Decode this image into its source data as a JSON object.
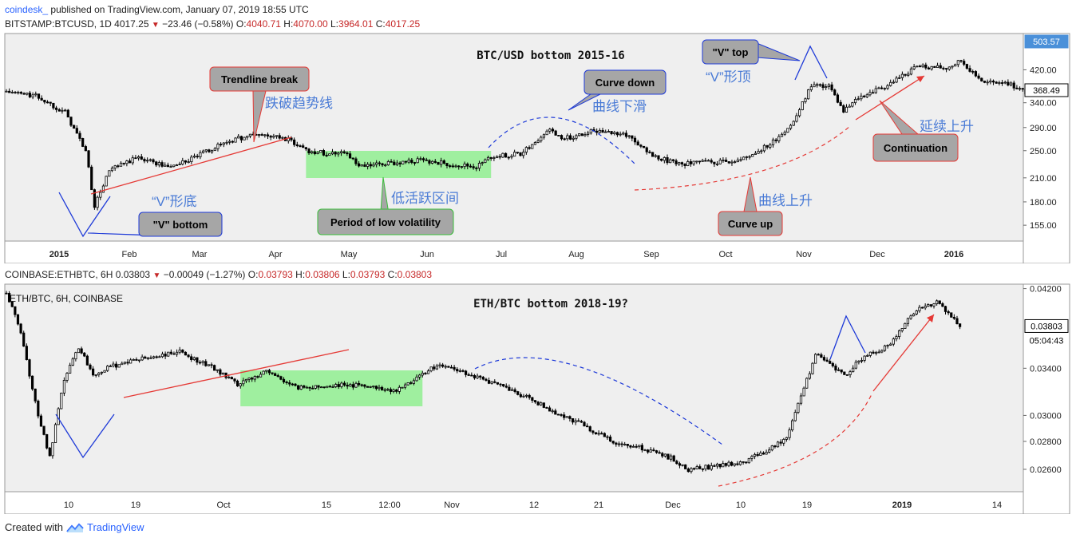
{
  "header": {
    "publisher": "coindesk_",
    "published_text": "published on TradingView.com, January 07, 2019 18:55 UTC"
  },
  "panel1": {
    "symbol": "BITSTAMP:BTCUSD, 1D",
    "last": "4017.25",
    "change": "−23.46 (−0.58%)",
    "open": "4040.71",
    "high": "4070.00",
    "low": "3964.01",
    "close": "4017.25"
  },
  "panel2": {
    "symbol": "COINBASE:ETHBTC, 6H",
    "last": "0.03803",
    "change": "−0.00049 (−1.27%)",
    "open": "0.03793",
    "high": "0.03806",
    "low": "0.03793",
    "close": "0.03803",
    "legend": "ETH/BTC, 6H, COINBASE",
    "countdown": "05:04:43"
  },
  "footer": {
    "created_with": "Created with",
    "brand": "TradingView"
  },
  "colors": {
    "up": "#ffffff",
    "down": "#000000",
    "wick": "#000000",
    "accent_red": "#e53935",
    "accent_blue": "#1e3ad8",
    "green_zone": "#90ee90",
    "callout_grey": "#a6a6a6",
    "price_tag_blue": "#4a90d9"
  },
  "chart_data": [
    {
      "type": "candlestick",
      "title": "BTC/USD bottom 2015-16",
      "x_ticks": [
        "2015",
        "Feb",
        "Mar",
        "Apr",
        "May",
        "Jun",
        "Jul",
        "Aug",
        "Sep",
        "Oct",
        "Nov",
        "Dec",
        "2016"
      ],
      "y_ticks": [
        155.0,
        180.0,
        210.0,
        250.0,
        290.0,
        340.0,
        420.0
      ],
      "y_scale": "log",
      "ylim": [
        140,
        530
      ],
      "price_tags": [
        "503.57",
        "368.49"
      ],
      "series_path": [
        [
          0,
          365
        ],
        [
          10,
          355
        ],
        [
          20,
          320
        ],
        [
          27,
          250
        ],
        [
          30,
          175
        ],
        [
          35,
          220
        ],
        [
          45,
          240
        ],
        [
          55,
          225
        ],
        [
          62,
          235
        ],
        [
          75,
          265
        ],
        [
          85,
          278
        ],
        [
          95,
          270
        ],
        [
          103,
          250
        ],
        [
          110,
          245
        ],
        [
          115,
          250
        ],
        [
          120,
          225
        ],
        [
          130,
          230
        ],
        [
          140,
          235
        ],
        [
          150,
          230
        ],
        [
          160,
          225
        ],
        [
          165,
          240
        ],
        [
          175,
          245
        ],
        [
          180,
          265
        ],
        [
          185,
          285
        ],
        [
          190,
          270
        ],
        [
          200,
          285
        ],
        [
          210,
          280
        ],
        [
          215,
          262
        ],
        [
          220,
          240
        ],
        [
          230,
          230
        ],
        [
          240,
          232
        ],
        [
          250,
          235
        ],
        [
          260,
          260
        ],
        [
          268,
          300
        ],
        [
          274,
          380
        ],
        [
          280,
          380
        ],
        [
          285,
          320
        ],
        [
          290,
          350
        ],
        [
          300,
          380
        ],
        [
          310,
          430
        ],
        [
          320,
          425
        ],
        [
          325,
          445
        ],
        [
          333,
          385
        ],
        [
          340,
          390
        ],
        [
          348,
          360
        ]
      ],
      "zones": [
        {
          "label": "Period of low volatility",
          "from": 102,
          "to": 165
        }
      ],
      "annotations": [
        {
          "text": "Trendline break"
        },
        {
          "text": "跌破趋势线"
        },
        {
          "text": "\"V\" bottom"
        },
        {
          "text": "“V”形底"
        },
        {
          "text": "低活跃区间"
        },
        {
          "text": "Curve down"
        },
        {
          "text": "曲线下滑"
        },
        {
          "text": "Curve up"
        },
        {
          "text": "曲线上升"
        },
        {
          "text": "\"V\" top"
        },
        {
          "text": "“V”形顶"
        },
        {
          "text": "Continuation"
        },
        {
          "text": "延续上升"
        }
      ]
    },
    {
      "type": "candlestick",
      "title": "ETH/BTC bottom 2018-19?",
      "x_ticks": [
        "10",
        "19",
        "Oct",
        "15",
        "12:00",
        "Nov",
        "12",
        "21",
        "Dec",
        "10",
        "19",
        "2019",
        "14"
      ],
      "y_ticks": [
        0.026,
        0.028,
        0.03,
        0.034,
        0.042
      ],
      "y_scale": "log",
      "ylim": [
        0.0245,
        0.0425
      ],
      "price_tags": [
        "0.03803"
      ],
      "series_path": [
        [
          0,
          0.0415
        ],
        [
          5,
          0.0375
        ],
        [
          10,
          0.031
        ],
        [
          15,
          0.0268
        ],
        [
          20,
          0.033
        ],
        [
          25,
          0.036
        ],
        [
          30,
          0.0335
        ],
        [
          40,
          0.0345
        ],
        [
          50,
          0.035
        ],
        [
          60,
          0.0355
        ],
        [
          72,
          0.034
        ],
        [
          80,
          0.0325
        ],
        [
          90,
          0.0338
        ],
        [
          100,
          0.0323
        ],
        [
          115,
          0.0325
        ],
        [
          125,
          0.0325
        ],
        [
          135,
          0.032
        ],
        [
          145,
          0.0337
        ],
        [
          150,
          0.0343
        ],
        [
          160,
          0.0335
        ],
        [
          170,
          0.0325
        ],
        [
          180,
          0.0315
        ],
        [
          190,
          0.0302
        ],
        [
          200,
          0.0292
        ],
        [
          210,
          0.028
        ],
        [
          220,
          0.0275
        ],
        [
          230,
          0.0268
        ],
        [
          236,
          0.026
        ],
        [
          245,
          0.0262
        ],
        [
          255,
          0.0265
        ],
        [
          262,
          0.0272
        ],
        [
          270,
          0.0283
        ],
        [
          275,
          0.0315
        ],
        [
          280,
          0.0352
        ],
        [
          285,
          0.0345
        ],
        [
          290,
          0.0333
        ],
        [
          295,
          0.0348
        ],
        [
          305,
          0.036
        ],
        [
          315,
          0.0398
        ],
        [
          322,
          0.0405
        ],
        [
          325,
          0.0395
        ],
        [
          330,
          0.038
        ]
      ],
      "zones": [
        {
          "label": "",
          "from": 81,
          "to": 144
        }
      ],
      "annotations": []
    }
  ]
}
